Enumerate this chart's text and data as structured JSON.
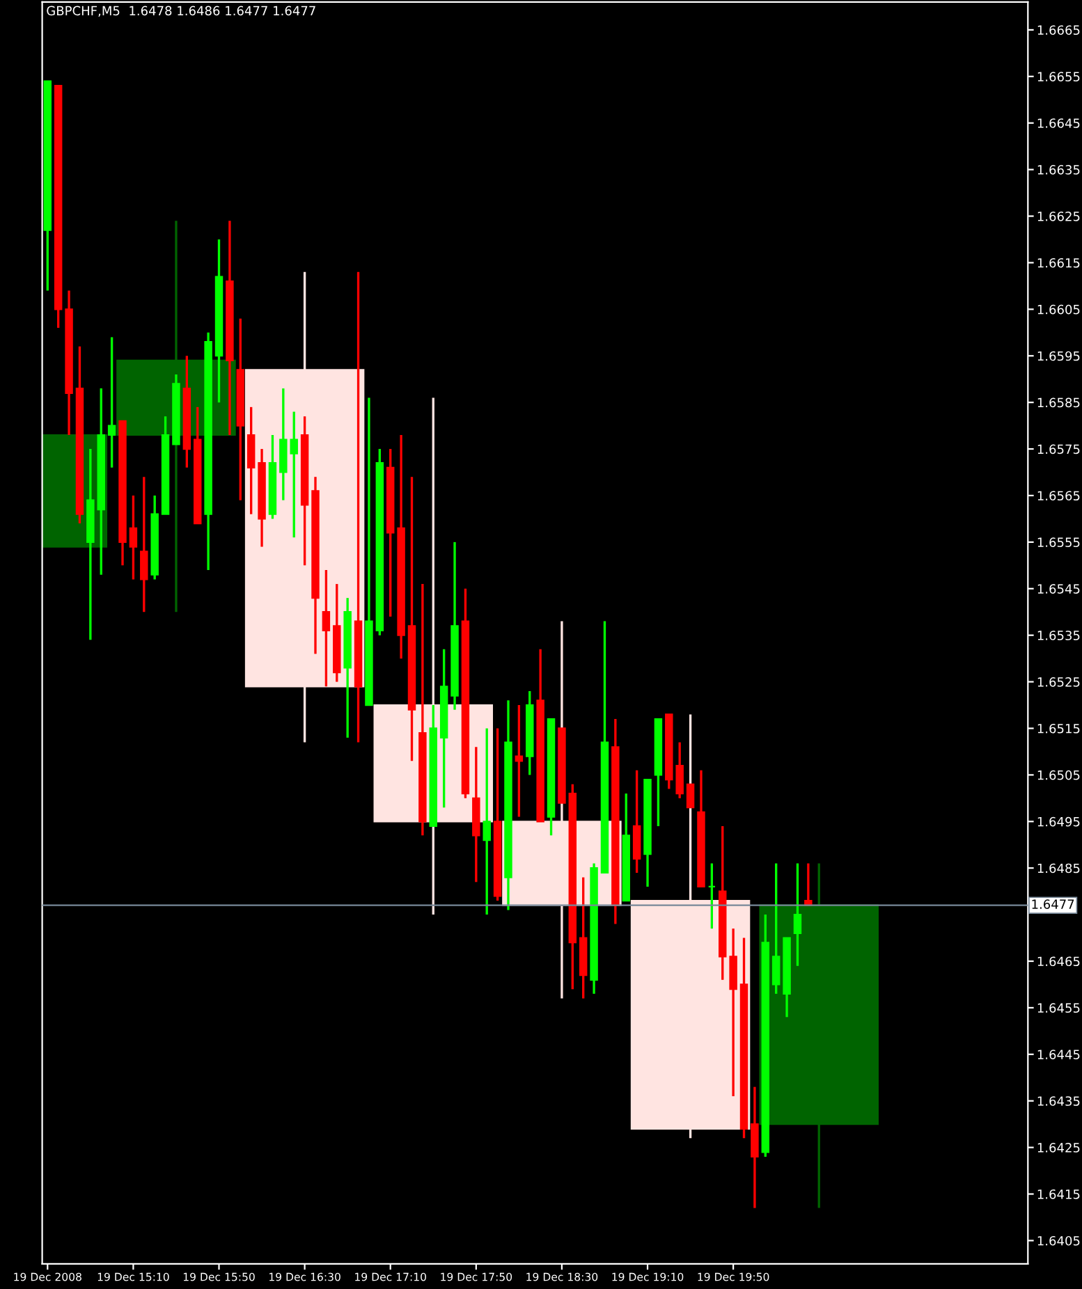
{
  "chart_data": {
    "type": "candlestick",
    "title": "GBPCHF,M5  1.6478 1.6486 1.6477 1.6477",
    "categories": [
      "19 Dec 2008",
      null,
      null,
      null,
      null,
      null,
      null,
      null,
      "19 Dec 15:10",
      null,
      null,
      null,
      null,
      null,
      null,
      null,
      "19 Dec 15:50",
      null,
      null,
      null,
      null,
      null,
      null,
      null,
      "19 Dec 16:30",
      null,
      null,
      null,
      null,
      null,
      null,
      null,
      "19 Dec 17:10",
      null,
      null,
      null,
      null,
      null,
      null,
      null,
      "19 Dec 17:50",
      null,
      null,
      null,
      null,
      null,
      null,
      null,
      "19 Dec 18:30",
      null,
      null,
      null,
      null,
      null,
      null,
      null,
      "19 Dec 19:10",
      null,
      null,
      null,
      null,
      null,
      null,
      null,
      "19 Dec 19:50",
      null,
      null,
      null,
      null,
      null,
      null,
      null,
      null,
      null,
      null,
      null,
      null,
      null,
      null,
      null,
      null,
      null,
      null,
      null,
      null,
      null,
      null,
      null,
      null,
      null,
      null,
      null
    ],
    "ohlc": [
      [
        1.6622,
        1.6654,
        1.6609,
        1.6654
      ],
      [
        1.6653,
        1.6653,
        1.6601,
        1.6605
      ],
      [
        1.6605,
        1.6609,
        1.6578,
        1.6587
      ],
      [
        1.6588,
        1.6597,
        1.6559,
        1.6561
      ],
      [
        1.6555,
        1.6575,
        1.6534,
        1.6564
      ],
      [
        1.6562,
        1.6588,
        1.6548,
        1.6578
      ],
      [
        1.6578,
        1.6599,
        1.6571,
        1.658
      ],
      [
        1.6581,
        1.6581,
        1.655,
        1.6555
      ],
      [
        1.6558,
        1.6565,
        1.6547,
        1.6554
      ],
      [
        1.6553,
        1.6569,
        1.654,
        1.6547
      ],
      [
        1.6548,
        1.6565,
        1.6547,
        1.6561
      ],
      [
        1.6561,
        1.6582,
        1.6561,
        1.6578
      ],
      [
        1.6576,
        1.6591,
        1.6576,
        1.6589
      ],
      [
        1.6588,
        1.6595,
        1.6571,
        1.6575
      ],
      [
        1.6577,
        1.6584,
        1.6559,
        1.6559
      ],
      [
        1.6561,
        1.66,
        1.6549,
        1.6598
      ],
      [
        1.6595,
        1.662,
        1.6585,
        1.6612
      ],
      [
        1.6611,
        1.6624,
        1.6578,
        1.6594
      ],
      [
        1.6592,
        1.6603,
        1.6564,
        1.658
      ],
      [
        1.6578,
        1.6584,
        1.6561,
        1.6571
      ],
      [
        1.6572,
        1.6575,
        1.6554,
        1.656
      ],
      [
        1.6561,
        1.6578,
        1.656,
        1.6572
      ],
      [
        1.657,
        1.6588,
        1.6564,
        1.6577
      ],
      [
        1.6574,
        1.6583,
        1.6556,
        1.6577
      ],
      [
        1.6578,
        1.6582,
        1.655,
        1.6563
      ],
      [
        1.6566,
        1.6569,
        1.6531,
        1.6543
      ],
      [
        1.654,
        1.6549,
        1.6524,
        1.6536
      ],
      [
        1.6537,
        1.6546,
        1.6525,
        1.6527
      ],
      [
        1.6528,
        1.6543,
        1.6513,
        1.654
      ],
      [
        1.6538,
        1.6613,
        1.6512,
        1.6524
      ],
      [
        1.652,
        1.6586,
        1.652,
        1.6538
      ],
      [
        1.6536,
        1.6575,
        1.6535,
        1.6572
      ],
      [
        1.6571,
        1.6575,
        1.6539,
        1.6557
      ],
      [
        1.6558,
        1.6578,
        1.653,
        1.6535
      ],
      [
        1.6537,
        1.6569,
        1.6508,
        1.6519
      ],
      [
        1.6514,
        1.6546,
        1.6492,
        1.6495
      ],
      [
        1.6494,
        1.652,
        1.6494,
        1.6515
      ],
      [
        1.6513,
        1.6532,
        1.6498,
        1.6524
      ],
      [
        1.6522,
        1.6555,
        1.6519,
        1.6537
      ],
      [
        1.6538,
        1.6545,
        1.65,
        1.6501
      ],
      [
        1.65,
        1.6511,
        1.6482,
        1.6492
      ],
      [
        1.6491,
        1.6515,
        1.6475,
        1.6495
      ],
      [
        1.6495,
        1.6515,
        1.6478,
        1.6479
      ],
      [
        1.6483,
        1.6521,
        1.6476,
        1.6512
      ],
      [
        1.6509,
        1.652,
        1.6496,
        1.6508
      ],
      [
        1.6509,
        1.6523,
        1.6505,
        1.652
      ],
      [
        1.6521,
        1.6532,
        1.6495,
        1.6495
      ],
      [
        1.6496,
        1.6517,
        1.6492,
        1.6517
      ],
      [
        1.6515,
        1.6515,
        1.6499,
        1.6499
      ],
      [
        1.6501,
        1.6503,
        1.6459,
        1.6469
      ],
      [
        1.647,
        1.6483,
        1.6457,
        1.6462
      ],
      [
        1.6461,
        1.6486,
        1.6458,
        1.6485
      ],
      [
        1.6484,
        1.6538,
        1.6484,
        1.6512
      ],
      [
        1.6511,
        1.6517,
        1.6473,
        1.6477
      ],
      [
        1.6478,
        1.6501,
        1.6478,
        1.6492
      ],
      [
        1.6494,
        1.6506,
        1.6484,
        1.6487
      ],
      [
        1.6488,
        1.6504,
        1.6481,
        1.6504
      ],
      [
        1.6505,
        1.6517,
        1.6494,
        1.6517
      ],
      [
        1.6518,
        1.6518,
        1.6502,
        1.6504
      ],
      [
        1.6507,
        1.6512,
        1.65,
        1.6501
      ],
      [
        1.6503,
        1.6503,
        1.6498,
        1.6498
      ],
      [
        1.6497,
        1.6506,
        1.6481,
        1.6481
      ],
      [
        1.6481,
        1.6486,
        1.6472,
        1.6481
      ],
      [
        1.648,
        1.6494,
        1.6461,
        1.6466
      ],
      [
        1.6466,
        1.6472,
        1.6436,
        1.6459
      ],
      [
        1.646,
        1.647,
        1.6427,
        1.6429
      ],
      [
        1.643,
        1.6438,
        1.6412,
        1.6423
      ],
      [
        1.6424,
        1.6475,
        1.6423,
        1.6469
      ],
      [
        1.646,
        1.6486,
        1.6458,
        1.6466
      ],
      [
        1.6458,
        1.647,
        1.6453,
        1.647
      ],
      [
        1.6471,
        1.6486,
        1.6464,
        1.6475
      ],
      [
        1.6478,
        1.6486,
        1.6477,
        1.6477
      ],
      null,
      null,
      null,
      null,
      null,
      null,
      null,
      null,
      null,
      null,
      null,
      null,
      null,
      null,
      null,
      null,
      null,
      null,
      null,
      null
    ],
    "colors": [
      "#00ff00",
      "#ff0000",
      "#ff0000",
      "#ff0000",
      "#00ff00",
      "#00ff00",
      "#00ff00",
      "#ff0000",
      "#ff0000",
      "#ff0000",
      "#00ff00",
      "#00ff00",
      "#00ff00",
      "#ff0000",
      "#ff0000",
      "#00ff00",
      "#00ff00",
      "#ff0000",
      "#ff0000",
      "#ff0000",
      "#ff0000",
      "#00ff00",
      "#00ff00",
      "#00ff00",
      "#ff0000",
      "#ff0000",
      "#ff0000",
      "#ff0000",
      "#00ff00",
      "#ff0000",
      "#00ff00",
      "#00ff00",
      "#ff0000",
      "#ff0000",
      "#ff0000",
      "#ff0000",
      "#00ff00",
      "#00ff00",
      "#00ff00",
      "#ff0000",
      "#ff0000",
      "#00ff00",
      "#ff0000",
      "#00ff00",
      "#ff0000",
      "#00ff00",
      "#ff0000",
      "#00ff00",
      "#ff0000",
      "#ff0000",
      "#ff0000",
      "#00ff00",
      "#00ff00",
      "#ff0000",
      "#00ff00",
      "#ff0000",
      "#00ff00",
      "#00ff00",
      "#ff0000",
      "#ff0000",
      "#ff0000",
      "#ff0000",
      "#00ff00",
      "#ff0000",
      "#ff0000",
      "#ff0000",
      "#ff0000",
      "#00ff00",
      "#00ff00",
      "#00ff00",
      "#00ff00",
      "#ff0000",
      null,
      null,
      null,
      null,
      null,
      null,
      null,
      null,
      null,
      null,
      null,
      null,
      null,
      null,
      null,
      null,
      null,
      null,
      null,
      null
    ],
    "series": [
      {
        "type": "candlestick",
        "ohlc": [
          [
            1.6554,
            1.6578,
            1.6554,
            1.6578
          ],
          null,
          null,
          null,
          null,
          null,
          null,
          null,
          null,
          null,
          null,
          null,
          [
            1.6578,
            1.6624,
            1.654,
            1.6594
          ],
          null,
          null,
          null,
          null,
          null,
          null,
          null,
          null,
          null,
          null,
          null,
          [
            1.6592,
            1.6613,
            1.6512,
            1.6524
          ],
          null,
          null,
          null,
          null,
          null,
          null,
          null,
          null,
          null,
          null,
          null,
          [
            1.652,
            1.6586,
            1.6475,
            1.6495
          ],
          null,
          null,
          null,
          null,
          null,
          null,
          null,
          null,
          null,
          null,
          null,
          [
            1.6495,
            1.6538,
            1.6457,
            1.6477
          ],
          null,
          null,
          null,
          null,
          null,
          null,
          null,
          null,
          null,
          null,
          null,
          [
            1.6478,
            1.6518,
            1.6427,
            1.6429
          ],
          null,
          null,
          null,
          null,
          null,
          null,
          null,
          null,
          null,
          null,
          null,
          [
            1.643,
            1.6486,
            1.6412,
            1.6477
          ],
          null,
          null,
          null,
          null,
          null,
          null,
          null,
          null,
          null,
          null,
          null,
          null,
          null,
          null,
          null,
          null,
          null,
          null,
          null
        ],
        "colors": [
          "#006400",
          null,
          null,
          null,
          null,
          null,
          null,
          null,
          null,
          null,
          null,
          null,
          "#006400",
          null,
          null,
          null,
          null,
          null,
          null,
          null,
          null,
          null,
          null,
          null,
          "#ffe4e1",
          null,
          null,
          null,
          null,
          null,
          null,
          null,
          null,
          null,
          null,
          null,
          "#ffe4e1",
          null,
          null,
          null,
          null,
          null,
          null,
          null,
          null,
          null,
          null,
          null,
          "#ffe4e1",
          null,
          null,
          null,
          null,
          null,
          null,
          null,
          null,
          null,
          null,
          null,
          "#ffe4e1",
          null,
          null,
          null,
          null,
          null,
          null,
          null,
          null,
          null,
          null,
          null,
          "#006400",
          null,
          null,
          null,
          null,
          null,
          null,
          null,
          null,
          null,
          null,
          null,
          null,
          null,
          null,
          null,
          null,
          null,
          null,
          null
        ]
      }
    ],
    "ref_lines": [
      {
        "axis": "y",
        "value": 1.6477,
        "label": "1.6477",
        "color": "#778899"
      }
    ],
    "ylim": [
      1.64,
      1.6671
    ],
    "yticks": [
      1.6405,
      1.6415,
      1.6425,
      1.6435,
      1.6445,
      1.6455,
      1.6465,
      1.6485,
      1.6495,
      1.6505,
      1.6515,
      1.6525,
      1.6535,
      1.6545,
      1.6555,
      1.6565,
      1.6575,
      1.6585,
      1.6595,
      1.6605,
      1.6615,
      1.6625,
      1.6635,
      1.6645,
      1.6655,
      1.6665
    ]
  }
}
